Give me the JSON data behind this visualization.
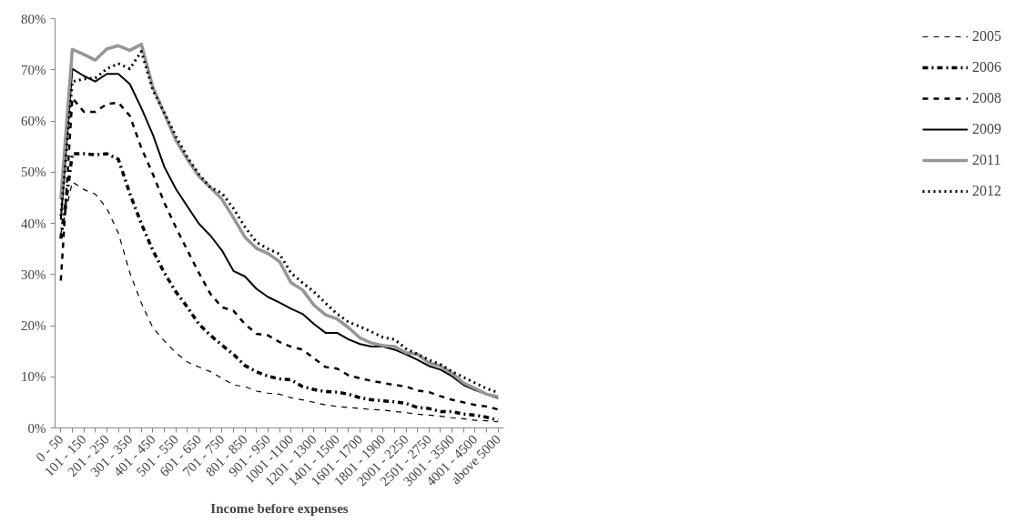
{
  "chart_data": {
    "type": "line",
    "xlabel": "Income before expenses",
    "categories": [
      "0 - 50",
      null,
      "101 - 150",
      null,
      "201 - 250",
      null,
      "301 - 350",
      null,
      "401 - 450",
      null,
      "501 - 550",
      null,
      "601 - 650",
      null,
      "701 - 750",
      null,
      "801 - 850",
      null,
      "901 - 950",
      null,
      "1001 -1100",
      null,
      "1201 - 1300",
      null,
      "1401 - 1500",
      null,
      "1601 - 1700",
      null,
      "1801 - 1900",
      null,
      "2001 - 2250",
      null,
      "2501 - 2750",
      null,
      "3001 - 3500",
      null,
      "4001 - 4500",
      null,
      "above 5000"
    ],
    "series": [
      {
        "name": "2005",
        "color": "#000000",
        "line_style": "dashed",
        "values": [
          38,
          48.1,
          46.6,
          45.7,
          42.9,
          38.1,
          30.3,
          24.4,
          19.6,
          17,
          14.7,
          12.9,
          11.9,
          11,
          9.7,
          8.4,
          8.1,
          7.2,
          6.8,
          6.6,
          5.9,
          5.5,
          5,
          4.5,
          4.2,
          4,
          3.8,
          3.6,
          3.5,
          3.2,
          3,
          2.7,
          2.5,
          2.3,
          2,
          1.8,
          1.5,
          1.4,
          1.2
        ]
      },
      {
        "name": "2006",
        "color": "#000000",
        "line_style": "dashdot",
        "values": [
          37,
          53.6,
          53.6,
          53.4,
          53.6,
          52.5,
          45.8,
          39.9,
          34.7,
          30.3,
          26.6,
          23.6,
          20.3,
          18.1,
          16.2,
          14.4,
          12.2,
          11,
          10.1,
          9.6,
          9.4,
          8.1,
          7.5,
          7.1,
          7,
          6.6,
          5.9,
          5.5,
          5.3,
          5.1,
          4.8,
          4,
          3.8,
          3.2,
          3.2,
          2.7,
          2.5,
          2.1,
          1.5
        ]
      },
      {
        "name": "2008",
        "color": "#000000",
        "line_style": "dashed",
        "values": [
          28.8,
          64.5,
          61.8,
          61.8,
          63.3,
          63.6,
          61,
          54.7,
          49.6,
          44,
          39.2,
          34.7,
          30.3,
          26.2,
          23.6,
          22.9,
          20.3,
          18.4,
          18.1,
          16.8,
          15.9,
          15.3,
          13.6,
          11.9,
          11.6,
          10.3,
          9.7,
          9.2,
          8.8,
          8.4,
          8.1,
          7.3,
          7,
          6.2,
          5.5,
          5,
          4.5,
          4.2,
          3.6
        ]
      },
      {
        "name": "2009",
        "color": "#000000",
        "line_style": "solid",
        "values": [
          40.7,
          70.2,
          68.8,
          67.7,
          69.2,
          69.2,
          67.2,
          62.5,
          57.3,
          51,
          46.7,
          43.3,
          39.9,
          37.6,
          34.7,
          30.7,
          29.6,
          27.2,
          25.6,
          24.5,
          23.3,
          22.3,
          20.3,
          18.6,
          18.6,
          17.3,
          16.4,
          15.9,
          15.9,
          15.3,
          14.4,
          13.3,
          12.1,
          11.4,
          10.1,
          8.4,
          7.4,
          6.6,
          5.8
        ]
      },
      {
        "name": "2011",
        "color": "#969696",
        "line_style": "solid",
        "values": [
          44.7,
          74,
          73,
          71.9,
          74.1,
          74.7,
          73.8,
          75,
          66.6,
          61.4,
          56.2,
          52.5,
          49.2,
          47,
          44.7,
          41.1,
          37.3,
          35.1,
          34.1,
          32.5,
          28.4,
          27,
          24,
          22.1,
          21.3,
          19.6,
          17.6,
          16.6,
          16.1,
          15.9,
          14.7,
          14.4,
          12.7,
          12.1,
          10.7,
          8.8,
          7.7,
          6.6,
          6.1
        ]
      },
      {
        "name": "2012",
        "color": "#000000",
        "line_style": "dotted",
        "values": [
          41.4,
          67.7,
          68.2,
          68.4,
          70.2,
          71.2,
          70.2,
          73.6,
          66,
          61.6,
          57,
          52.9,
          49.6,
          47,
          45.9,
          42.9,
          39.3,
          36.3,
          35,
          34,
          30.3,
          28.4,
          26.6,
          24.4,
          22.3,
          20.7,
          19.8,
          18.8,
          17.7,
          17.3,
          15.5,
          14.4,
          13.3,
          12.4,
          11,
          9.9,
          8.8,
          7.7,
          6.9
        ]
      }
    ],
    "ylim": [
      0,
      80
    ],
    "yticks": [
      {
        "value": 0,
        "label": "0%"
      },
      {
        "value": 10,
        "label": "10%"
      },
      {
        "value": 20,
        "label": "20%"
      },
      {
        "value": 30,
        "label": "30%"
      },
      {
        "value": 40,
        "label": "40%"
      },
      {
        "value": 50,
        "label": "50%"
      },
      {
        "value": 60,
        "label": "60%"
      },
      {
        "value": 70,
        "label": "70%"
      },
      {
        "value": 80,
        "label": "80%"
      }
    ],
    "grid": false,
    "legend": "right",
    "marker": "none"
  }
}
